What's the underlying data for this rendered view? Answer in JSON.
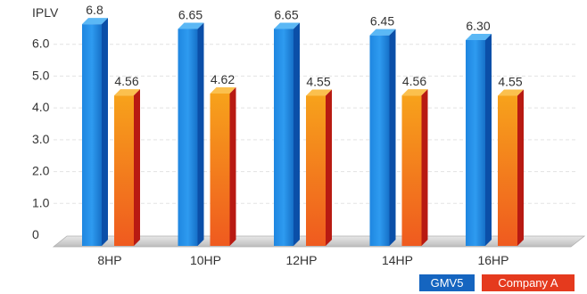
{
  "chart_data": {
    "type": "bar",
    "ylabel": "IPLV",
    "categories": [
      "8HP",
      "10HP",
      "12HP",
      "14HP",
      "16HP"
    ],
    "series": [
      {
        "name": "GMV5",
        "values": [
          6.8,
          6.65,
          6.65,
          6.45,
          6.3
        ],
        "labels": [
          "6.8",
          "6.65",
          "6.65",
          "6.45",
          "6.30"
        ],
        "color": "#1c7fd6"
      },
      {
        "name": "Company A",
        "values": [
          4.56,
          4.62,
          4.55,
          4.56,
          4.55
        ],
        "labels": [
          "4.56",
          "4.62",
          "4.55",
          "4.56",
          "4.55"
        ],
        "color": "#f29a1d"
      }
    ],
    "yticks": [
      {
        "value": 0,
        "label": "0"
      },
      {
        "value": 1,
        "label": "1.0"
      },
      {
        "value": 2,
        "label": "2.0"
      },
      {
        "value": 3,
        "label": "3.0"
      },
      {
        "value": 4,
        "label": "4.0"
      },
      {
        "value": 5,
        "label": "5.0"
      },
      {
        "value": 6,
        "label": "6.0"
      }
    ],
    "ylim": [
      0,
      7
    ],
    "grid": true,
    "legend_position": "bottom-right",
    "legend_colors": [
      "#1565c0",
      "#e53a1e"
    ]
  }
}
